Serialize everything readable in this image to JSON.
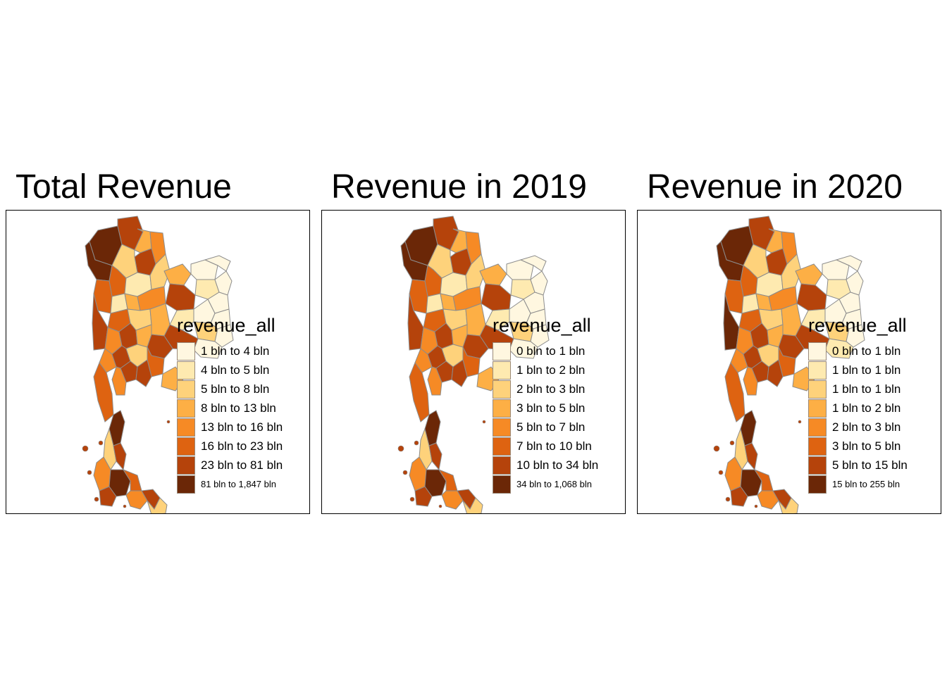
{
  "panels": [
    {
      "title": "Total Revenue",
      "legend": {
        "title": "revenue_all",
        "classes": [
          {
            "label": "1 bln to 4 bln",
            "color": "#fff7e0"
          },
          {
            "label": "4 bln to 5 bln",
            "color": "#feeab0"
          },
          {
            "label": "5 bln to 8 bln",
            "color": "#fed27b"
          },
          {
            "label": "8 bln to 13 bln",
            "color": "#fdaf45"
          },
          {
            "label": "13 bln to 16 bln",
            "color": "#f68a25"
          },
          {
            "label": "16 bln to 23 bln",
            "color": "#de6311"
          },
          {
            "label": "23 bln to 81 bln",
            "color": "#b5430b"
          },
          {
            "label": "81 bln to 1,847 bln",
            "color": "#6b2707"
          }
        ]
      }
    },
    {
      "title": "Revenue in 2019",
      "legend": {
        "title": "revenue_all",
        "classes": [
          {
            "label": "0 bln to 1 bln",
            "color": "#fff7e0"
          },
          {
            "label": "1 bln to 2 bln",
            "color": "#feeab0"
          },
          {
            "label": "2 bln to 3 bln",
            "color": "#fed27b"
          },
          {
            "label": "3 bln to 5 bln",
            "color": "#fdaf45"
          },
          {
            "label": "5 bln to 7 bln",
            "color": "#f68a25"
          },
          {
            "label": "7 bln to 10 bln",
            "color": "#de6311"
          },
          {
            "label": "10 bln to 34 bln",
            "color": "#b5430b"
          },
          {
            "label": "34 bln to 1,068 bln",
            "color": "#6b2707"
          }
        ]
      }
    },
    {
      "title": "Revenue in 2020",
      "legend": {
        "title": "revenue_all",
        "classes": [
          {
            "label": "0 bln to 1 bln",
            "color": "#fff7e0"
          },
          {
            "label": "1 bln to 1 bln",
            "color": "#feeab0"
          },
          {
            "label": "1 bln to 1 bln",
            "color": "#fed27b"
          },
          {
            "label": "1 bln to 2 bln",
            "color": "#fdaf45"
          },
          {
            "label": "2 bln to 3 bln",
            "color": "#f68a25"
          },
          {
            "label": "3 bln to 5 bln",
            "color": "#de6311"
          },
          {
            "label": "5 bln to 15 bln",
            "color": "#b5430b"
          },
          {
            "label": "15 bln to 255 bln",
            "color": "#6b2707"
          }
        ]
      }
    }
  ]
}
